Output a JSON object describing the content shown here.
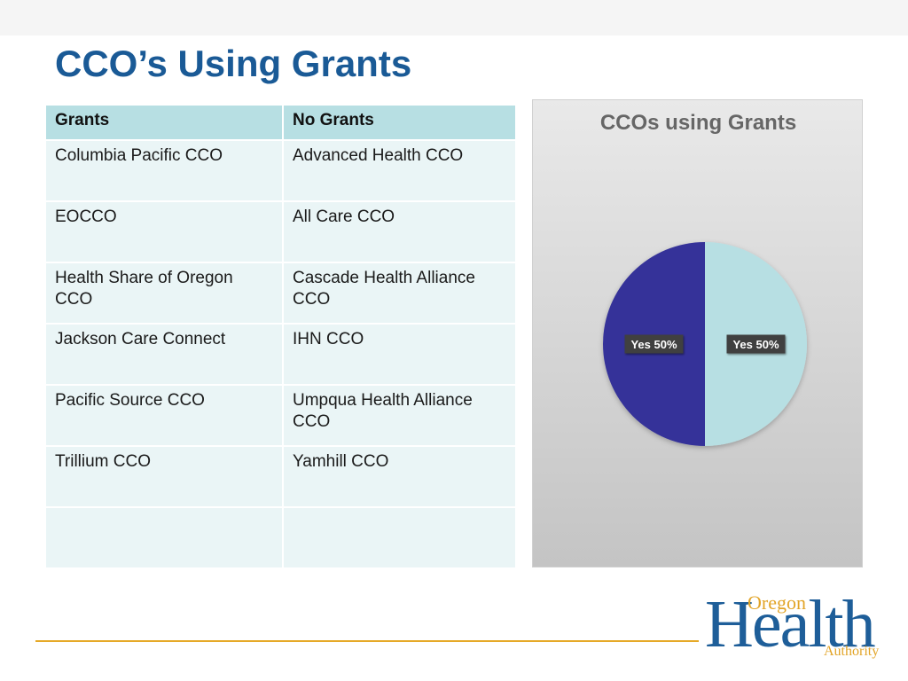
{
  "slide": {
    "title": "CCO’s Using Grants"
  },
  "table": {
    "headers": [
      "Grants",
      "No Grants"
    ],
    "rows": [
      [
        "Columbia Pacific CCO",
        "Advanced Health CCO"
      ],
      [
        "EOCCO",
        "All Care CCO"
      ],
      [
        "Health Share of Oregon CCO",
        "Cascade Health Alliance CCO"
      ],
      [
        "Jackson Care Connect",
        "IHN CCO"
      ],
      [
        "Pacific Source CCO",
        "Umpqua Health Alliance CCO"
      ],
      [
        "Trillium CCO",
        "Yamhill CCO"
      ],
      [
        "",
        ""
      ]
    ]
  },
  "chart_data": {
    "type": "pie",
    "title": "CCOs using Grants",
    "slices": [
      {
        "label": "Yes",
        "value": 50,
        "display": "Yes 50%",
        "color": "#b7dfe3"
      },
      {
        "label": "Yes",
        "value": 50,
        "display": "Yes 50%",
        "color": "#353399"
      }
    ],
    "start_angle_deg": 0,
    "legend": "none"
  },
  "logo": {
    "oregon": "Oregon",
    "health": "Health",
    "authority": "Authority"
  },
  "colors": {
    "title": "#1a5a96",
    "table_header": "#b7dfe3",
    "table_cell": "#eaf5f6",
    "footer_line": "#e6a927",
    "logo_blue": "#1e5e99",
    "logo_gold": "#e2a427"
  }
}
